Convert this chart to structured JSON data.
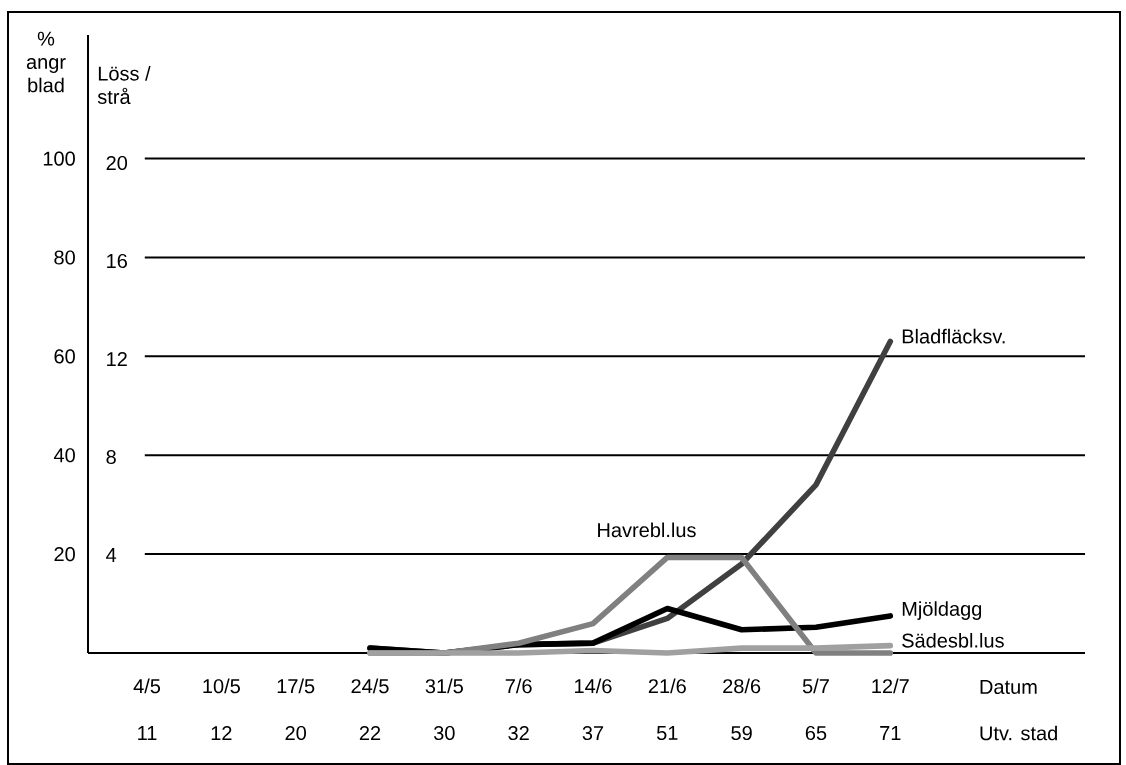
{
  "chart_data": {
    "type": "line",
    "xlabel": "Datum",
    "ylabel": "% angr blad",
    "y2label": "Löss / strå",
    "categories": [
      "4/5",
      "10/5",
      "17/5",
      "24/5",
      "31/5",
      "7/6",
      "14/6",
      "21/6",
      "28/6",
      "5/7",
      "12/7"
    ],
    "series": [
      {
        "name": "Bladfläcksv.",
        "color": "#404040",
        "values": [
          null,
          null,
          null,
          1,
          0,
          1.7,
          2,
          7,
          18,
          34,
          63
        ]
      },
      {
        "name": "Mjöldagg",
        "color": "#000000",
        "values": [
          null,
          null,
          null,
          1,
          0,
          1.7,
          2,
          9,
          4.7,
          5.2,
          7.5
        ]
      },
      {
        "name": "Havrebl.lus",
        "color": "#808080",
        "axis": "y2",
        "values": [
          null,
          null,
          null,
          0,
          0,
          0.4,
          1.2,
          3.9,
          3.9,
          0,
          0
        ]
      },
      {
        "name": "Sädesbl.lus",
        "color": "#a0a0a0",
        "axis": "y2",
        "values": [
          null,
          null,
          null,
          0,
          0,
          0,
          0.1,
          0,
          0.2,
          0.2,
          0.3
        ]
      }
    ],
    "ylim": [
      0,
      125
    ],
    "yticks": [
      20,
      40,
      60,
      80,
      100
    ],
    "y2lim": [
      0,
      20
    ],
    "y2ticks": [
      4,
      8,
      12,
      16,
      20
    ],
    "annotations": [
      "11",
      "12",
      "20",
      "22",
      "30",
      "32",
      "37",
      "51",
      "59",
      "65",
      "71",
      "Utv. stad"
    ],
    "grid": "y",
    "legend": false,
    "marker": "none",
    "line_style": "solid"
  }
}
